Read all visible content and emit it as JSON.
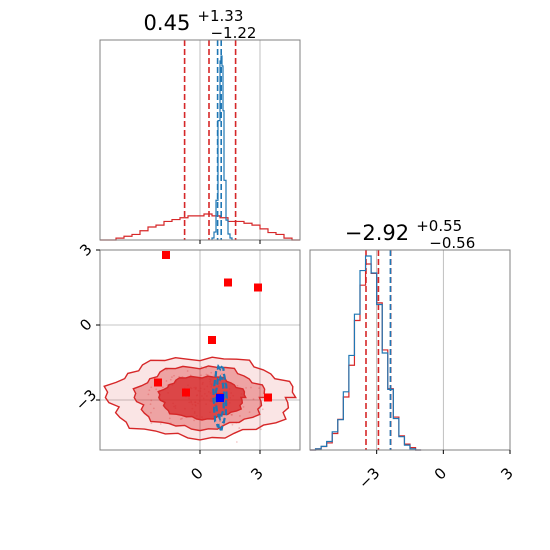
{
  "colors": {
    "truth": "#ff0000",
    "sample_a": "#1f77b4",
    "sample_b": "#d62728",
    "truth_point": "#0000ff",
    "grid": "#b0b0b0",
    "frame": "#808080"
  },
  "chart_data": [
    {
      "type": "histogram",
      "panel": "corner-top-left",
      "title": {
        "value": "0.45",
        "upper": "+1.33",
        "lower": "−1.22"
      },
      "xlim": [
        -5,
        5
      ],
      "grid": true,
      "series": [
        {
          "color": "#d62728",
          "bin_edges": [
            -5.0,
            -4.6,
            -4.2,
            -3.8,
            -3.4,
            -3.0,
            -2.6,
            -2.2,
            -1.8,
            -1.4,
            -1.0,
            -0.6,
            -0.2,
            0.2,
            0.6,
            1.0,
            1.4,
            1.8,
            2.2,
            2.6,
            3.0,
            3.4,
            3.8,
            4.2,
            4.6,
            5.0
          ],
          "counts": [
            0,
            0,
            1,
            2,
            3,
            5,
            7,
            8,
            10,
            11,
            12,
            13,
            13,
            14,
            13,
            12,
            10,
            10,
            9,
            8,
            6,
            4,
            3,
            1,
            0
          ],
          "quantile_lines": [
            -0.77,
            0.45,
            1.78
          ]
        },
        {
          "color": "#1f77b4",
          "bin_edges": [
            0.6,
            0.7,
            0.8,
            0.9,
            1.0,
            1.05,
            1.1,
            1.15,
            1.2,
            1.3,
            1.4,
            1.5,
            1.6
          ],
          "counts": [
            2,
            8,
            40,
            120,
            180,
            185,
            175,
            130,
            60,
            20,
            6,
            2
          ],
          "quantile_lines": [
            0.88,
            1.06
          ]
        }
      ]
    },
    {
      "type": "histogram",
      "panel": "corner-bottom-right",
      "title": {
        "value": "−2.92",
        "upper": "+0.55",
        "lower": "−0.56"
      },
      "xlim": [
        -6,
        3
      ],
      "grid": true,
      "x_ticks": [
        "−3",
        "0",
        "3"
      ],
      "series": [
        {
          "color": "#d62728",
          "bin_edges": [
            -6.0,
            -5.75,
            -5.5,
            -5.25,
            -5.0,
            -4.75,
            -4.5,
            -4.25,
            -4.0,
            -3.75,
            -3.5,
            -3.25,
            -3.0,
            -2.75,
            -2.5,
            -2.25,
            -2.0,
            -1.75,
            -1.5,
            -1.25,
            -1.0
          ],
          "counts": [
            0,
            1,
            3,
            6,
            14,
            26,
            45,
            72,
            110,
            140,
            158,
            150,
            125,
            85,
            52,
            28,
            12,
            5,
            2,
            0
          ],
          "quantile_lines": [
            -3.48,
            -2.92,
            -2.37
          ]
        },
        {
          "color": "#1f77b4",
          "bin_edges": [
            -6.0,
            -5.75,
            -5.5,
            -5.25,
            -5.0,
            -4.75,
            -4.5,
            -4.25,
            -4.0,
            -3.75,
            -3.5,
            -3.25,
            -3.0,
            -2.75,
            -2.5,
            -2.25,
            -2.0,
            -1.75,
            -1.5,
            -1.25,
            -1.0
          ],
          "counts": [
            0,
            1,
            3,
            7,
            15,
            25,
            48,
            78,
            112,
            148,
            160,
            146,
            120,
            80,
            50,
            26,
            11,
            4,
            1,
            0
          ],
          "quantile_lines": [
            -2.38
          ]
        }
      ]
    },
    {
      "type": "scatter",
      "panel": "corner-bottom-left",
      "xlim": [
        -5,
        5
      ],
      "ylim": [
        -5,
        3
      ],
      "grid": true,
      "x_ticks": [
        "0",
        "3"
      ],
      "y_ticks": [
        "3",
        "0",
        "−3"
      ],
      "contours": [
        {
          "color": "#d62728",
          "cx": 0.0,
          "cy": -2.9,
          "rx": 4.6,
          "ry": 1.6,
          "fill_opacity": 0.12
        },
        {
          "color": "#d62728",
          "cx": 0.0,
          "cy": -2.9,
          "rx": 3.2,
          "ry": 1.25,
          "fill_opacity": 0.35
        },
        {
          "color": "#d62728",
          "cx": 0.1,
          "cy": -2.9,
          "rx": 2.1,
          "ry": 0.85,
          "fill_opacity": 0.75
        },
        {
          "color": "#1f77b4",
          "cx": 1.0,
          "cy": -2.9,
          "rx": 0.32,
          "ry": 1.25,
          "fill_opacity": 0.0
        },
        {
          "color": "#1f77b4",
          "cx": 1.0,
          "cy": -2.9,
          "rx": 0.2,
          "ry": 0.8,
          "fill_opacity": 0.0
        }
      ],
      "points_truth": [
        {
          "x": -1.7,
          "y": 2.8
        },
        {
          "x": 1.4,
          "y": 1.7
        },
        {
          "x": 2.9,
          "y": 1.5
        },
        {
          "x": 0.6,
          "y": -0.6
        },
        {
          "x": -2.1,
          "y": -2.3
        },
        {
          "x": -0.7,
          "y": -2.7
        },
        {
          "x": 3.4,
          "y": -2.9
        },
        {
          "x": 1.0,
          "y": -2.9
        }
      ],
      "point_estimate": {
        "x": 1.0,
        "y": -2.92
      }
    }
  ]
}
